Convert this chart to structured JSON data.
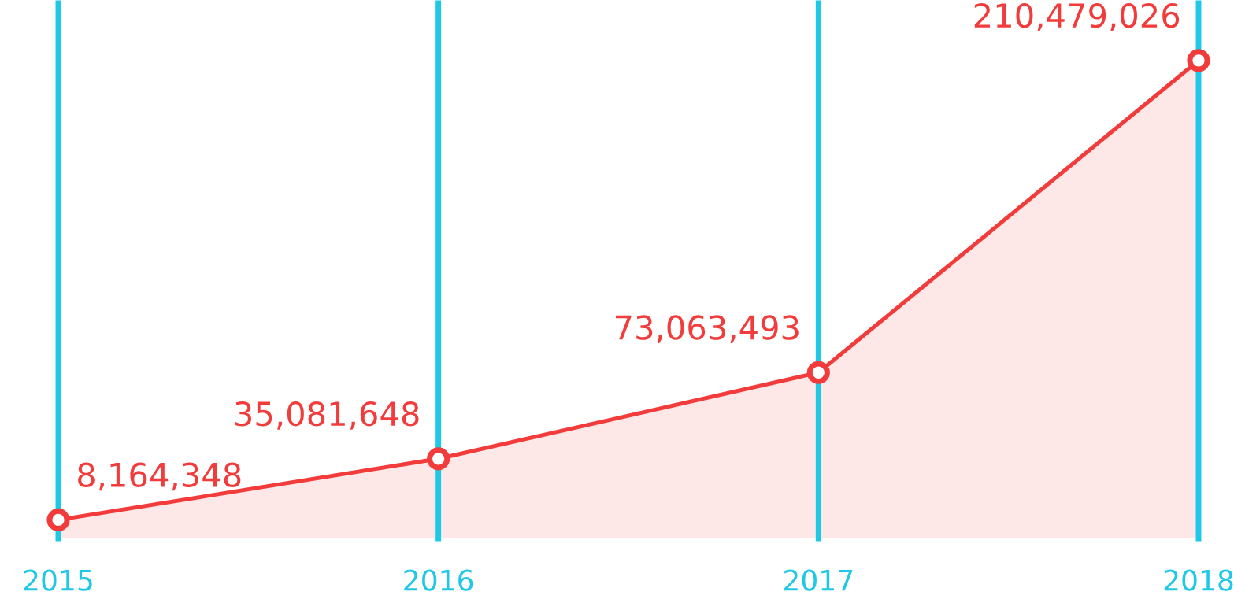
{
  "chart_data": {
    "type": "area",
    "categories": [
      "2015",
      "2016",
      "2017",
      "2018"
    ],
    "series": [
      {
        "color": "#f23b3b",
        "values": [
          8164348,
          35081648,
          73063493,
          210479026
        ],
        "value_labels": [
          "8,164,348",
          "35,081,648",
          "73,063,493",
          "210,479,026"
        ]
      }
    ],
    "grid": "x",
    "marker": "circle",
    "line_style": "solid",
    "legend": false
  }
}
